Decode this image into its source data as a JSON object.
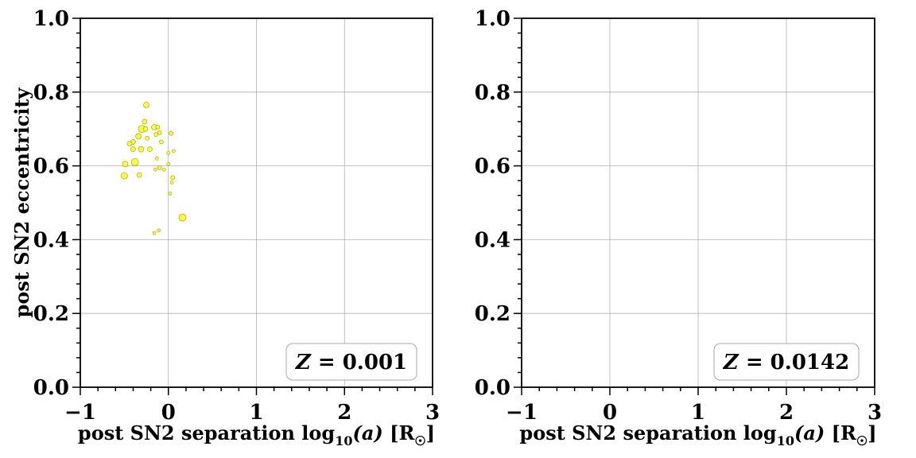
{
  "chart_data": [
    {
      "type": "scatter",
      "title": "",
      "xlabel": "post SN2 separation log10(a) [R☉]",
      "xlabel_parts": {
        "main": "post SN2 separation log",
        "sub": "10",
        "arg": "(a)",
        "unit": " [R",
        "unit_sub": "☉",
        "close": "]"
      },
      "ylabel": "post SN2 eccentricity",
      "xlim": [
        -1,
        3
      ],
      "ylim": [
        0.0,
        1.0
      ],
      "xticks": [
        "−1",
        "0",
        "1",
        "2",
        "3"
      ],
      "yticks": [
        "0.0",
        "0.2",
        "0.4",
        "0.6",
        "0.8",
        "1.0"
      ],
      "grid": true,
      "legend": {
        "text": "Z = 0.001",
        "placement": "lower-right"
      },
      "marker_color": "#ffff33",
      "marker_edge": "#999900",
      "series": [
        {
          "points": [
            {
              "x": -0.25,
              "y": 0.765,
              "s": 3.5
            },
            {
              "x": -0.27,
              "y": 0.72,
              "s": 3
            },
            {
              "x": -0.3,
              "y": 0.7,
              "s": 4.5
            },
            {
              "x": -0.26,
              "y": 0.7,
              "s": 3
            },
            {
              "x": -0.16,
              "y": 0.705,
              "s": 3.5
            },
            {
              "x": -0.12,
              "y": 0.705,
              "s": 2.5
            },
            {
              "x": -0.1,
              "y": 0.69,
              "s": 2.5
            },
            {
              "x": -0.14,
              "y": 0.685,
              "s": 2.5
            },
            {
              "x": 0.03,
              "y": 0.688,
              "s": 2.5
            },
            {
              "x": -0.34,
              "y": 0.68,
              "s": 3.5
            },
            {
              "x": -0.24,
              "y": 0.675,
              "s": 2.5
            },
            {
              "x": -0.4,
              "y": 0.665,
              "s": 3
            },
            {
              "x": -0.44,
              "y": 0.66,
              "s": 3
            },
            {
              "x": -0.08,
              "y": 0.665,
              "s": 2.5
            },
            {
              "x": -0.31,
              "y": 0.645,
              "s": 3.5
            },
            {
              "x": -0.4,
              "y": 0.645,
              "s": 3
            },
            {
              "x": -0.21,
              "y": 0.645,
              "s": 3
            },
            {
              "x": 0.0,
              "y": 0.635,
              "s": 2
            },
            {
              "x": 0.06,
              "y": 0.64,
              "s": 2
            },
            {
              "x": -0.13,
              "y": 0.62,
              "s": 2
            },
            {
              "x": -0.49,
              "y": 0.605,
              "s": 3.5
            },
            {
              "x": -0.38,
              "y": 0.61,
              "s": 4.5
            },
            {
              "x": 0.0,
              "y": 0.605,
              "s": 2
            },
            {
              "x": -0.1,
              "y": 0.595,
              "s": 2.5
            },
            {
              "x": -0.15,
              "y": 0.59,
              "s": 2
            },
            {
              "x": -0.05,
              "y": 0.59,
              "s": 2
            },
            {
              "x": -0.33,
              "y": 0.575,
              "s": 3
            },
            {
              "x": -0.5,
              "y": 0.573,
              "s": 4
            },
            {
              "x": 0.05,
              "y": 0.568,
              "s": 2.5
            },
            {
              "x": 0.04,
              "y": 0.555,
              "s": 2
            },
            {
              "x": 0.02,
              "y": 0.525,
              "s": 2
            },
            {
              "x": 0.16,
              "y": 0.46,
              "s": 4.5
            },
            {
              "x": -0.11,
              "y": 0.425,
              "s": 2
            },
            {
              "x": -0.16,
              "y": 0.418,
              "s": 2
            }
          ]
        }
      ]
    },
    {
      "type": "scatter",
      "title": "",
      "xlabel": "post SN2 separation log10(a) [R☉]",
      "xlabel_parts": {
        "main": "post SN2 separation log",
        "sub": "10",
        "arg": "(a)",
        "unit": " [R",
        "unit_sub": "☉",
        "close": "]"
      },
      "ylabel": "",
      "xlim": [
        -1,
        3
      ],
      "ylim": [
        0.0,
        1.0
      ],
      "xticks": [
        "−1",
        "0",
        "1",
        "2",
        "3"
      ],
      "yticks": [
        "0.0",
        "0.2",
        "0.4",
        "0.6",
        "0.8",
        "1.0"
      ],
      "grid": true,
      "legend": {
        "text": "Z = 0.0142",
        "placement": "lower-right"
      },
      "marker_color": "#ffff33",
      "marker_edge": "#999900",
      "series": [
        {
          "points": []
        }
      ]
    }
  ]
}
